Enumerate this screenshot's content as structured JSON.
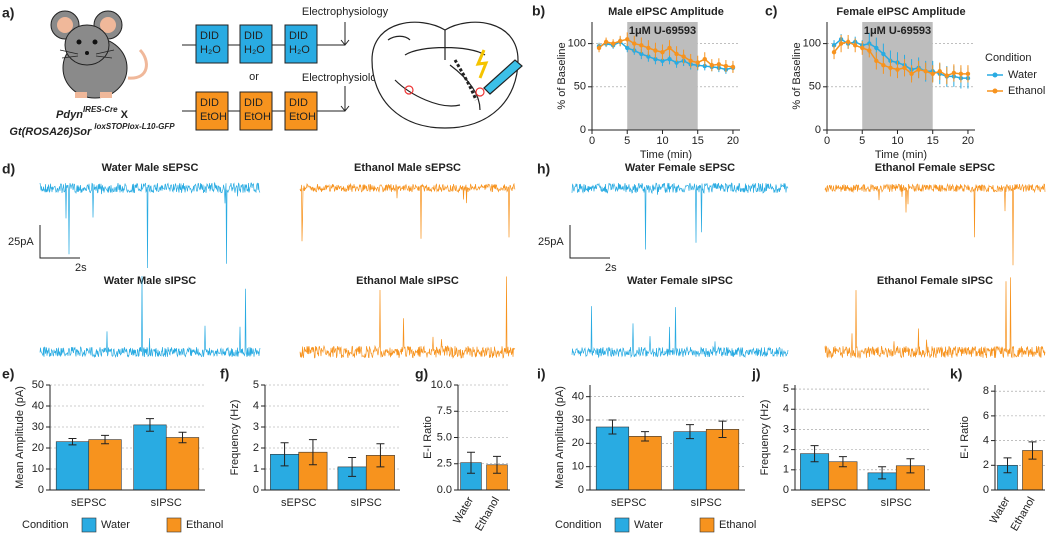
{
  "panels": {
    "a": "a)",
    "d": "d)",
    "h": "h)"
  },
  "diagram": {
    "water_boxes": [
      [
        "DID",
        "H₂O"
      ],
      [
        "DID",
        "H₂O"
      ],
      [
        "DID",
        "H₂O"
      ]
    ],
    "ethanol_boxes": [
      [
        "DID",
        "EtOH"
      ],
      [
        "DID",
        "EtOH"
      ],
      [
        "DID",
        "EtOH"
      ]
    ],
    "or": "or",
    "ephys": [
      "Electrophysiology",
      "Electrophysiology"
    ],
    "mouse_label": {
      "line1": [
        "Pdyn",
        "IRES-Cre",
        "X"
      ],
      "line2": [
        "Gt(ROSA26)Sor",
        "loxSTOPlox-L10-GFP"
      ]
    }
  },
  "traces": {
    "titles": [
      "Water Male sEPSC",
      "Ethanol Male sEPSC",
      "Water Female sEPSC",
      "Ethanol Female sEPSC",
      "Water Male sIPSC",
      "Ethanol Male sIPSC",
      "Water Female sIPSC",
      "Ethanol Female sIPSC"
    ],
    "scale_amplitude": [
      "25pA",
      "25pA"
    ],
    "scale_time": [
      "2s",
      "2s"
    ]
  },
  "chart_data": [
    {
      "type": "line",
      "panel": "b)",
      "title": "Male eIPSC Amplitude",
      "xlabel": "Time (min)",
      "ylabel": "% of Baseline",
      "x": [
        1,
        2,
        3,
        4,
        5,
        6,
        7,
        8,
        9,
        10,
        11,
        12,
        13,
        14,
        15,
        16,
        17,
        18,
        19,
        20
      ],
      "xlim": [
        0,
        21
      ],
      "xticks": [
        0,
        5,
        10,
        15,
        20
      ],
      "ylim": [
        0,
        125
      ],
      "yticks": [
        0,
        50,
        100
      ],
      "grid": true,
      "shaded_xlim": [
        5,
        15
      ],
      "shaded_label": "1μM U-69593",
      "series": [
        {
          "name": "Water",
          "color": "#29abe2",
          "values": [
            97,
            100,
            98,
            102,
            95,
            92,
            88,
            85,
            82,
            80,
            82,
            78,
            80,
            76,
            75,
            74,
            73,
            72,
            70,
            72
          ],
          "errors": [
            4,
            4,
            4,
            5,
            5,
            5,
            6,
            6,
            6,
            6,
            6,
            6,
            6,
            6,
            6,
            5,
            5,
            5,
            5,
            5
          ]
        },
        {
          "name": "Ethanol",
          "color": "#f7931e",
          "values": [
            95,
            102,
            100,
            103,
            105,
            100,
            98,
            95,
            92,
            90,
            95,
            88,
            85,
            80,
            78,
            82,
            75,
            76,
            74,
            73
          ],
          "errors": [
            5,
            5,
            5,
            6,
            8,
            9,
            9,
            9,
            9,
            9,
            9,
            9,
            8,
            8,
            8,
            8,
            7,
            7,
            7,
            7
          ]
        }
      ]
    },
    {
      "type": "line",
      "panel": "c)",
      "title": "Female eIPSC Amplitude",
      "xlabel": "Time (min)",
      "ylabel": "% of Baseline",
      "x": [
        1,
        2,
        3,
        4,
        5,
        6,
        7,
        8,
        9,
        10,
        11,
        12,
        13,
        14,
        15,
        16,
        17,
        18,
        19,
        20
      ],
      "xlim": [
        0,
        21
      ],
      "xticks": [
        0,
        5,
        10,
        15,
        20
      ],
      "ylim": [
        0,
        125
      ],
      "yticks": [
        0,
        50,
        100
      ],
      "grid": true,
      "shaded_xlim": [
        5,
        15
      ],
      "shaded_label": "1μM U-69593",
      "legend_title": "Condition",
      "series": [
        {
          "name": "Water",
          "color": "#29abe2",
          "values": [
            98,
            105,
            100,
            102,
            98,
            100,
            95,
            88,
            80,
            78,
            75,
            70,
            72,
            68,
            68,
            65,
            62,
            62,
            60,
            60
          ],
          "errors": [
            6,
            6,
            6,
            6,
            6,
            12,
            12,
            12,
            12,
            12,
            12,
            12,
            12,
            12,
            12,
            12,
            12,
            12,
            12,
            12
          ]
        },
        {
          "name": "Ethanol",
          "color": "#f7931e",
          "values": [
            90,
            100,
            102,
            98,
            95,
            92,
            80,
            75,
            72,
            70,
            72,
            65,
            70,
            68,
            65,
            68,
            63,
            66,
            65,
            65
          ],
          "errors": [
            8,
            10,
            8,
            8,
            8,
            8,
            10,
            10,
            10,
            10,
            10,
            10,
            10,
            10,
            10,
            10,
            10,
            10,
            10,
            10
          ]
        }
      ]
    },
    {
      "type": "bar",
      "panel": "e)",
      "ylabel": "Mean Amplitude (pA)",
      "categories": [
        "sEPSC",
        "sIPSC"
      ],
      "ylim": [
        0,
        50
      ],
      "yticks": [
        0,
        10,
        20,
        30,
        40,
        50
      ],
      "grid": true,
      "legend_title": "Condition",
      "series": [
        {
          "name": "Water",
          "color": "#29abe2",
          "values": [
            23,
            31
          ],
          "errors": [
            1.5,
            3
          ]
        },
        {
          "name": "Ethanol",
          "color": "#f7931e",
          "values": [
            24,
            25
          ],
          "errors": [
            2,
            2.5
          ]
        }
      ]
    },
    {
      "type": "bar",
      "panel": "f)",
      "ylabel": "Frequency (Hz)",
      "categories": [
        "sEPSC",
        "sIPSC"
      ],
      "ylim": [
        0,
        5
      ],
      "yticks": [
        0,
        1,
        2,
        3,
        4,
        5
      ],
      "grid": true,
      "series": [
        {
          "name": "Water",
          "color": "#29abe2",
          "values": [
            1.7,
            1.1
          ],
          "errors": [
            0.55,
            0.45
          ]
        },
        {
          "name": "Ethanol",
          "color": "#f7931e",
          "values": [
            1.8,
            1.65
          ],
          "errors": [
            0.6,
            0.55
          ]
        }
      ]
    },
    {
      "type": "bar",
      "panel": "g)",
      "ylabel": "E-I Ratio",
      "categories": [
        "Water",
        "Ethanol"
      ],
      "ylim": [
        0,
        10
      ],
      "yticks": [
        {
          "value": 0,
          "label": "0.0"
        },
        {
          "value": 2.5,
          "label": "2.5"
        },
        {
          "value": 5,
          "label": "5.0"
        },
        {
          "value": 7.5,
          "label": "7.5"
        },
        {
          "value": 10,
          "label": "10.0"
        }
      ],
      "grid": true,
      "values": [
        2.6,
        2.4
      ],
      "errors": [
        1.0,
        0.8
      ],
      "colors": [
        "#29abe2",
        "#f7931e"
      ]
    },
    {
      "type": "bar",
      "panel": "i)",
      "ylabel": "Mean Amplitude (pA)",
      "categories": [
        "sEPSC",
        "sIPSC"
      ],
      "ylim": [
        0,
        45
      ],
      "yticks": [
        0,
        10,
        20,
        30,
        40
      ],
      "grid": true,
      "legend_title": "Condition",
      "series": [
        {
          "name": "Water",
          "color": "#29abe2",
          "values": [
            27,
            25
          ],
          "errors": [
            3,
            3
          ]
        },
        {
          "name": "Ethanol",
          "color": "#f7931e",
          "values": [
            23,
            26
          ],
          "errors": [
            2,
            3.5
          ]
        }
      ]
    },
    {
      "type": "bar",
      "panel": "j)",
      "ylabel": "Frequency (Hz)",
      "categories": [
        "sEPSC",
        "sIPSC"
      ],
      "ylim": [
        0,
        5.2
      ],
      "yticks": [
        0,
        1,
        2,
        3,
        4,
        5
      ],
      "grid": true,
      "series": [
        {
          "name": "Water",
          "color": "#29abe2",
          "values": [
            1.8,
            0.85
          ],
          "errors": [
            0.4,
            0.3
          ]
        },
        {
          "name": "Ethanol",
          "color": "#f7931e",
          "values": [
            1.4,
            1.2
          ],
          "errors": [
            0.25,
            0.35
          ]
        }
      ]
    },
    {
      "type": "bar",
      "panel": "k)",
      "ylabel": "E-I Ratio",
      "categories": [
        "Water",
        "Ethanol"
      ],
      "ylim": [
        0,
        8.5
      ],
      "yticks": [
        0,
        2,
        4,
        6,
        8
      ],
      "grid": true,
      "values": [
        2.0,
        3.2
      ],
      "errors": [
        0.6,
        0.7
      ],
      "colors": [
        "#29abe2",
        "#f7931e"
      ]
    }
  ]
}
